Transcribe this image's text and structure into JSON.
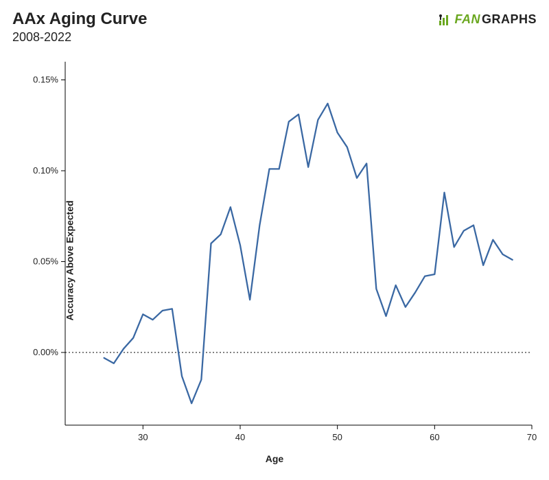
{
  "title": "AAx Aging Curve",
  "subtitle": "2008-2022",
  "logo": {
    "fan": "FAN",
    "graphs": "GRAPHS"
  },
  "chart": {
    "type": "line",
    "xlabel": "Age",
    "ylabel": "Accuracy Above Expected",
    "xlim": [
      22,
      70
    ],
    "ylim": [
      -0.0004,
      0.0016
    ],
    "xticks": [
      30,
      40,
      50,
      60,
      70
    ],
    "yticks": [
      {
        "v": 0.0,
        "label": "0.00%"
      },
      {
        "v": 0.0005,
        "label": "0.05%"
      },
      {
        "v": 0.001,
        "label": "0.10%"
      },
      {
        "v": 0.0015,
        "label": "0.15%"
      }
    ],
    "zero_line": 0.0,
    "line_color": "#3a68a3",
    "line_width": 2.3,
    "axis_color": "#000000",
    "tick_color": "#000000",
    "zero_line_style": "dotted",
    "background_color": "#ffffff",
    "title_fontsize": 24,
    "subtitle_fontsize": 18,
    "label_fontsize": 14,
    "tick_fontsize": 13,
    "series": {
      "x": [
        26,
        27,
        28,
        29,
        30,
        31,
        32,
        33,
        34,
        35,
        36,
        37,
        38,
        39,
        40,
        41,
        42,
        43,
        44,
        45,
        46,
        47,
        48,
        49,
        50,
        51,
        52,
        53,
        54,
        55,
        56,
        57,
        58,
        59,
        60,
        61,
        62,
        63,
        64,
        65,
        66,
        67,
        68
      ],
      "y": [
        -3e-05,
        -6e-05,
        2e-05,
        8e-05,
        0.00021,
        0.00018,
        0.00023,
        0.00024,
        -0.00013,
        -0.00028,
        -0.00015,
        0.0006,
        0.00065,
        0.0008,
        0.00059,
        0.00029,
        0.0007,
        0.00101,
        0.00101,
        0.00127,
        0.00131,
        0.00102,
        0.00128,
        0.00137,
        0.00121,
        0.00113,
        0.00096,
        0.00104,
        0.00035,
        0.0002,
        0.00037,
        0.00025,
        0.00033,
        0.00042,
        0.00043,
        0.00088,
        0.00058,
        0.00067,
        0.0007,
        0.00048,
        0.00062,
        0.00054,
        0.00051
      ]
    }
  }
}
